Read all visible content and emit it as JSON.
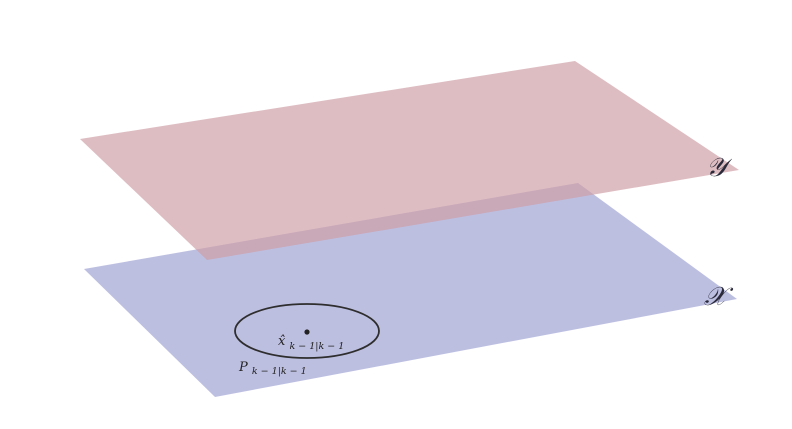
{
  "diagram": {
    "planes": [
      {
        "id": "observation-space",
        "label": "𝒴",
        "color": "#cf9ea5"
      },
      {
        "id": "state-space",
        "label": "𝒳",
        "color": "#a3a6d6"
      }
    ],
    "state_estimate": {
      "symbol": "x̂",
      "subscript": "k − 1|k − 1"
    },
    "covariance": {
      "symbol": "P",
      "subscript": "k − 1|k − 1"
    }
  }
}
